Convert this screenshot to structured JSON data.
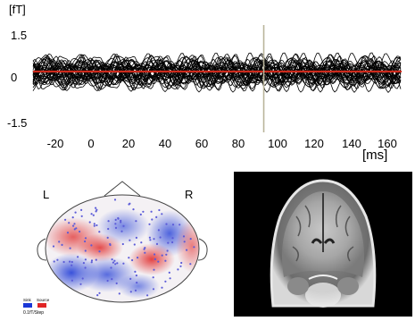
{
  "waveform": {
    "y_unit": "[fT]",
    "y_ticks": [
      "1.5",
      "0",
      "-1.5"
    ],
    "x_ticks": [
      "-20",
      "0",
      "20",
      "40",
      "60",
      "80",
      "100",
      "120",
      "140",
      "160"
    ],
    "x_unit": "[ms]",
    "trace_color": "#000000",
    "mean_color": "#cc2a1c",
    "cursor_color": "#b9b49a",
    "cursor_time_ms": 93
  },
  "topomap": {
    "left_label": "L",
    "right_label": "R",
    "sink_color": "#1a37d6",
    "source_color": "#e02525",
    "legend": {
      "sink_label": "Sink",
      "source_label": "Source",
      "scale_label": "0.1fT/Step"
    }
  },
  "mri": {
    "icon": "coronal-brain-mri-image"
  }
}
